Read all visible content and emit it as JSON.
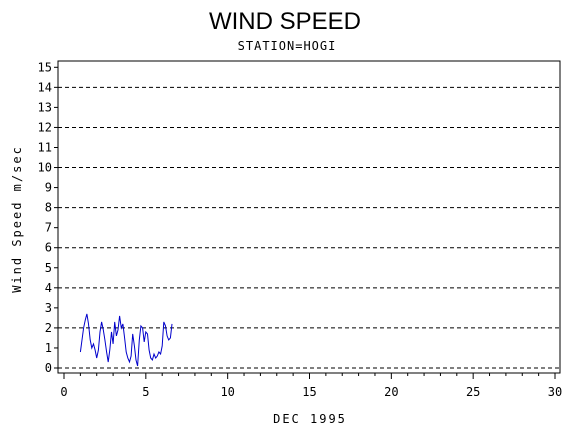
{
  "chart_data": {
    "type": "line",
    "title": "WIND SPEED",
    "subtitle": "STATION=HOGI",
    "xlabel": "DEC 1995",
    "ylabel": "Wind Speed m/sec",
    "xlim": [
      0,
      30
    ],
    "ylim": [
      0,
      15.5
    ],
    "xticks": [
      0,
      5,
      10,
      15,
      20,
      25,
      30
    ],
    "yticks": [
      0,
      1,
      2,
      3,
      4,
      5,
      6,
      7,
      8,
      9,
      10,
      11,
      12,
      13,
      14,
      15
    ],
    "dashed_gridlines_y": [
      0,
      2,
      4,
      6,
      8,
      10,
      12,
      14
    ],
    "line_color": "#0000cc",
    "series": [
      {
        "x": [
          1.0,
          1.1,
          1.2,
          1.3,
          1.4,
          1.5,
          1.6,
          1.7,
          1.8,
          1.9,
          2.0,
          2.1,
          2.2,
          2.3,
          2.4,
          2.5,
          2.6,
          2.7,
          2.8,
          2.9,
          3.0,
          3.1,
          3.2,
          3.3,
          3.4,
          3.5,
          3.6,
          3.7,
          3.8,
          3.9,
          4.0,
          4.1,
          4.2,
          4.3,
          4.4,
          4.5,
          4.6,
          4.7,
          4.8,
          4.9,
          5.0,
          5.1,
          5.2,
          5.3,
          5.4,
          5.5,
          5.6,
          5.7,
          5.8,
          5.9,
          6.0,
          6.1,
          6.2,
          6.3,
          6.4,
          6.5,
          6.6
        ],
        "values": [
          0.8,
          1.4,
          2.0,
          2.4,
          2.7,
          2.2,
          1.4,
          1.0,
          1.2,
          0.9,
          0.5,
          0.9,
          1.8,
          2.3,
          1.9,
          1.4,
          0.8,
          0.3,
          0.9,
          1.8,
          1.2,
          2.3,
          1.6,
          1.9,
          2.6,
          2.0,
          2.2,
          1.5,
          0.8,
          0.5,
          0.3,
          0.6,
          1.7,
          1.1,
          0.4,
          0.1,
          1.4,
          2.1,
          2.0,
          1.3,
          1.8,
          1.7,
          0.9,
          0.5,
          0.4,
          0.7,
          0.5,
          0.6,
          0.8,
          0.7,
          1.1,
          2.3,
          2.1,
          1.6,
          1.4,
          1.5,
          2.2
        ]
      }
    ]
  }
}
